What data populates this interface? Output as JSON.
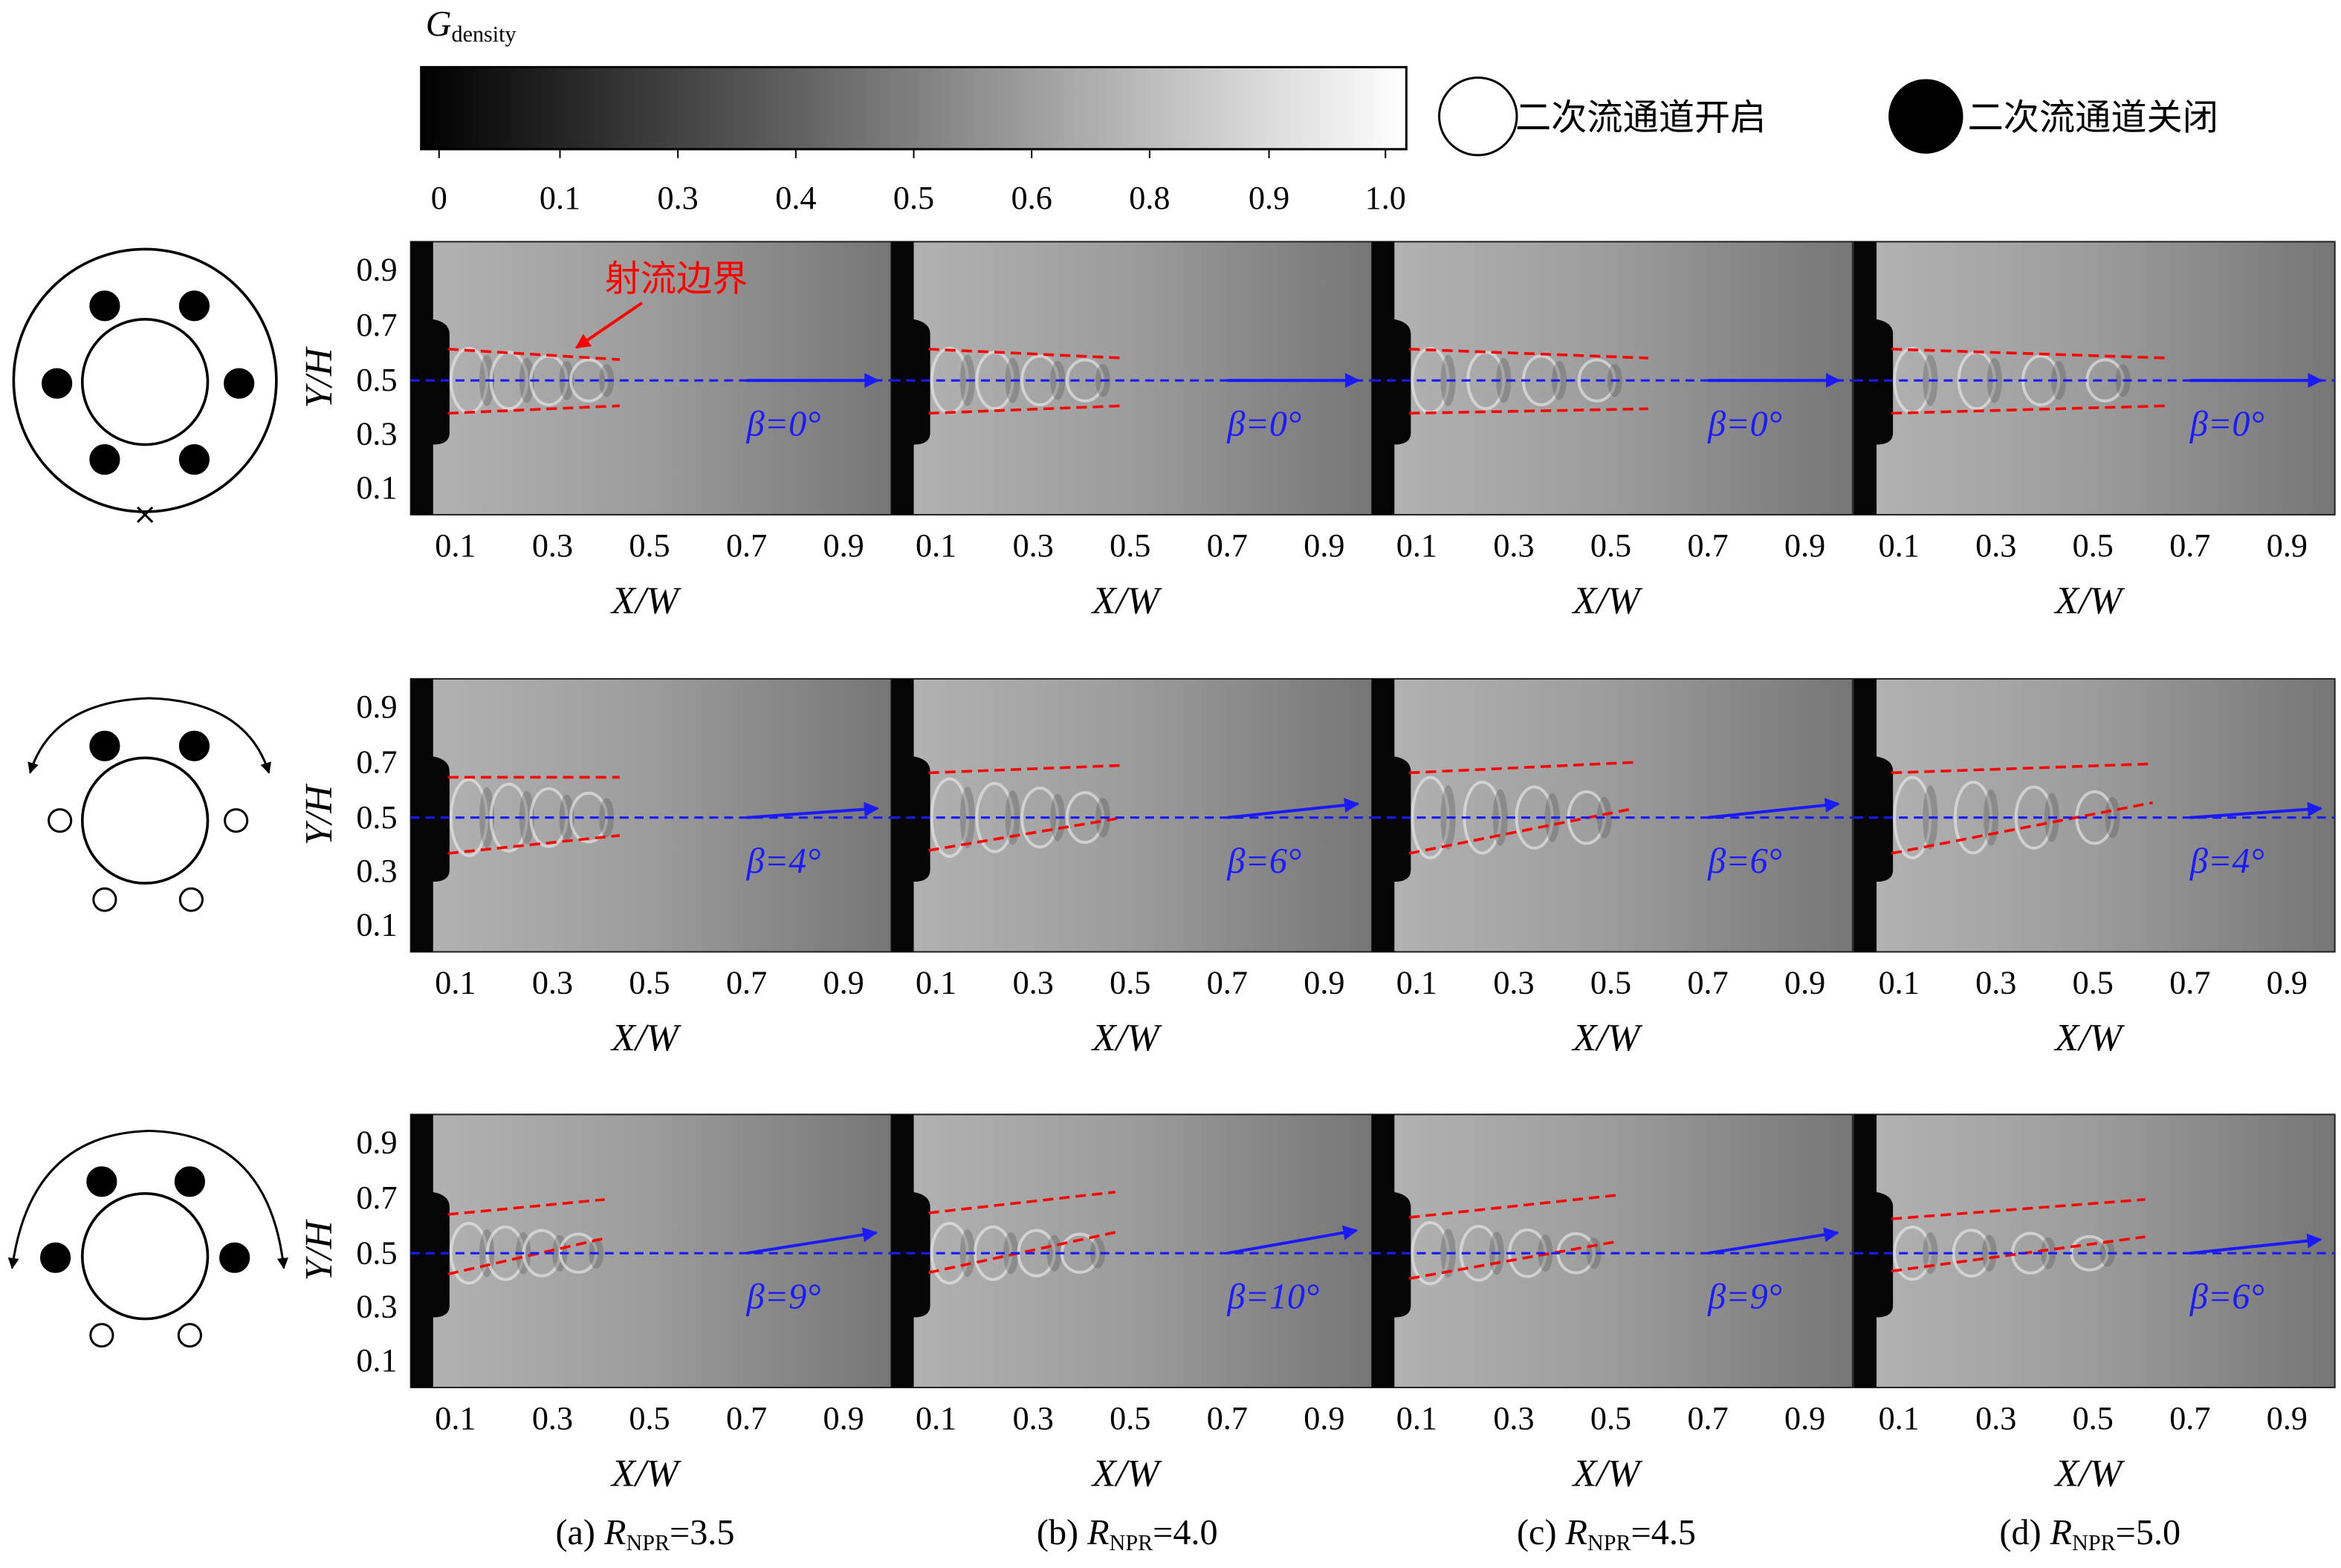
{
  "colorbar": {
    "label": "G",
    "label_sub": "density",
    "ticks": [
      "0",
      "0.1",
      "0.3",
      "0.4",
      "0.5",
      "0.6",
      "0.8",
      "0.9",
      "1.0"
    ]
  },
  "legend": {
    "open": "二次流通道开启",
    "closed": "二次流通道关闭"
  },
  "annotation": "射流边界",
  "axes": {
    "y_label": "Y/H",
    "x_label": "X/W",
    "y_ticks": [
      "0.9",
      "0.7",
      "0.5",
      "0.3",
      "0.1"
    ],
    "x_ticks": [
      "0.1",
      "0.3",
      "0.5",
      "0.7",
      "0.9"
    ]
  },
  "rows": [
    {
      "betas": [
        "β=0°",
        "β=0°",
        "β=0°",
        "β=0°"
      ]
    },
    {
      "betas": [
        "β=4°",
        "β=6°",
        "β=6°",
        "β=4°"
      ]
    },
    {
      "betas": [
        "β=9°",
        "β=10°",
        "β=9°",
        "β=6°"
      ]
    }
  ],
  "captions": [
    {
      "prefix": "(a)",
      "symbol": "R",
      "sub": "NPR",
      "value": "=3.5"
    },
    {
      "prefix": "(b)",
      "symbol": "R",
      "sub": "NPR",
      "value": "=4.0"
    },
    {
      "prefix": "(c)",
      "symbol": "R",
      "sub": "NPR",
      "value": "=4.5"
    },
    {
      "prefix": "(d)",
      "symbol": "R",
      "sub": "NPR",
      "value": "=5.0"
    }
  ]
}
